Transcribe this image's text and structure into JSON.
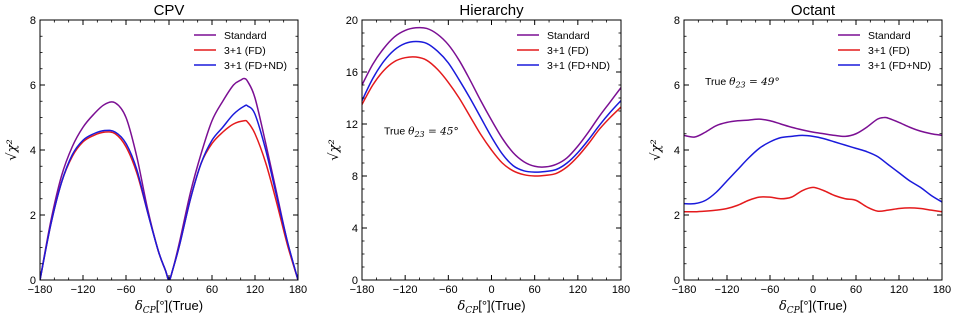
{
  "chart_data": [
    {
      "type": "line",
      "title": "CPV",
      "xlabel": "δCP[°](True)",
      "ylabel": "√χ²",
      "xlim": [
        -180,
        180
      ],
      "ylim": [
        0,
        8
      ],
      "xticks": [
        "−180",
        "−120",
        "−60",
        "0",
        "60",
        "120",
        "180"
      ],
      "yticks": [
        "0",
        "2",
        "4",
        "6",
        "8"
      ],
      "legend_position": "top-right",
      "annotation": "",
      "series": [
        {
          "name": "Standard",
          "color": "#7b0f93",
          "x": [
            -180,
            -165,
            -150,
            -135,
            -120,
            -105,
            -90,
            -75,
            -60,
            -45,
            -30,
            -15,
            -5,
            0,
            5,
            15,
            30,
            45,
            60,
            75,
            90,
            100,
            105,
            110,
            120,
            135,
            150,
            165,
            180
          ],
          "y": [
            0,
            1.8,
            3.2,
            4.1,
            4.7,
            5.1,
            5.4,
            5.45,
            5.0,
            3.8,
            2.2,
            0.9,
            0.3,
            0,
            0.3,
            1.2,
            2.7,
            3.9,
            4.9,
            5.5,
            6.0,
            6.15,
            6.2,
            6.1,
            5.6,
            4.2,
            2.7,
            1.2,
            0
          ]
        },
        {
          "name": "3+1 (FD)",
          "color": "#e41a1c",
          "x": [
            -180,
            -165,
            -150,
            -135,
            -120,
            -105,
            -90,
            -75,
            -60,
            -45,
            -30,
            -15,
            -5,
            0,
            5,
            15,
            30,
            45,
            60,
            75,
            90,
            105,
            110,
            120,
            135,
            150,
            165,
            180
          ],
          "y": [
            0,
            1.7,
            3.0,
            3.8,
            4.25,
            4.45,
            4.55,
            4.5,
            4.1,
            3.3,
            2.1,
            0.9,
            0.3,
            0,
            0.3,
            1.1,
            2.5,
            3.6,
            4.2,
            4.55,
            4.8,
            4.9,
            4.85,
            4.5,
            3.6,
            2.4,
            1.1,
            0
          ]
        },
        {
          "name": "3+1 (FD+ND)",
          "color": "#1a1adb",
          "x": [
            -180,
            -165,
            -150,
            -135,
            -120,
            -105,
            -90,
            -75,
            -60,
            -45,
            -30,
            -15,
            -5,
            0,
            5,
            15,
            30,
            45,
            60,
            75,
            90,
            105,
            110,
            120,
            135,
            150,
            165,
            180
          ],
          "y": [
            0,
            1.7,
            3.0,
            3.85,
            4.3,
            4.5,
            4.6,
            4.55,
            4.2,
            3.4,
            2.1,
            0.9,
            0.3,
            0,
            0.3,
            1.1,
            2.5,
            3.6,
            4.3,
            4.7,
            5.1,
            5.35,
            5.35,
            5.1,
            4.0,
            2.6,
            1.2,
            0
          ]
        }
      ]
    },
    {
      "type": "line",
      "title": "Hierarchy",
      "xlabel": "δCP[°](True)",
      "ylabel": "√χ²",
      "xlim": [
        -180,
        180
      ],
      "ylim": [
        0,
        20
      ],
      "xticks": [
        "−180",
        "−120",
        "−60",
        "0",
        "60",
        "120",
        "180"
      ],
      "yticks": [
        "0",
        "4",
        "8",
        "12",
        "16",
        "20"
      ],
      "legend_position": "top-right",
      "annotation": "True θ23 = 45°",
      "series": [
        {
          "name": "Standard",
          "color": "#7b0f93",
          "x": [
            -180,
            -165,
            -150,
            -135,
            -120,
            -105,
            -90,
            -75,
            -60,
            -45,
            -30,
            -15,
            0,
            15,
            30,
            45,
            60,
            75,
            90,
            105,
            120,
            135,
            150,
            165,
            180
          ],
          "y": [
            15.0,
            16.6,
            17.8,
            18.7,
            19.2,
            19.4,
            19.35,
            18.9,
            18.1,
            16.9,
            15.4,
            13.8,
            12.3,
            10.9,
            9.8,
            9.1,
            8.75,
            8.7,
            8.9,
            9.4,
            10.3,
            11.4,
            12.6,
            13.7,
            14.8
          ]
        },
        {
          "name": "3+1 (FD)",
          "color": "#e41a1c",
          "x": [
            -180,
            -165,
            -150,
            -135,
            -120,
            -105,
            -90,
            -75,
            -60,
            -45,
            -30,
            -15,
            0,
            15,
            30,
            45,
            60,
            75,
            90,
            105,
            120,
            135,
            150,
            165,
            180
          ],
          "y": [
            13.5,
            15.0,
            16.1,
            16.8,
            17.1,
            17.15,
            16.9,
            16.2,
            15.2,
            14.0,
            12.6,
            11.2,
            10.0,
            9.0,
            8.4,
            8.1,
            8.0,
            8.05,
            8.2,
            8.7,
            9.5,
            10.5,
            11.6,
            12.5,
            13.3
          ]
        },
        {
          "name": "3+1 (FD+ND)",
          "color": "#1a1adb",
          "x": [
            -180,
            -165,
            -150,
            -135,
            -120,
            -105,
            -90,
            -75,
            -60,
            -45,
            -30,
            -15,
            0,
            15,
            30,
            45,
            60,
            75,
            90,
            105,
            120,
            135,
            150,
            165,
            180
          ],
          "y": [
            13.8,
            15.5,
            16.8,
            17.7,
            18.2,
            18.35,
            18.2,
            17.6,
            16.7,
            15.4,
            14.0,
            12.5,
            11.0,
            9.7,
            8.8,
            8.4,
            8.3,
            8.35,
            8.5,
            9.0,
            9.8,
            10.8,
            11.9,
            12.9,
            13.8
          ]
        }
      ]
    },
    {
      "type": "line",
      "title": "Octant",
      "xlabel": "δCP[°](True)",
      "ylabel": "√χ²",
      "xlim": [
        -180,
        180
      ],
      "ylim": [
        0,
        8
      ],
      "xticks": [
        "−180",
        "−120",
        "−60",
        "0",
        "60",
        "120",
        "180"
      ],
      "yticks": [
        "0",
        "2",
        "4",
        "6",
        "8"
      ],
      "legend_position": "top-right",
      "annotation": "True θ23 = 49°",
      "series": [
        {
          "name": "Standard",
          "color": "#7b0f93",
          "x": [
            -180,
            -165,
            -150,
            -135,
            -120,
            -105,
            -90,
            -75,
            -60,
            -45,
            -30,
            -15,
            0,
            15,
            30,
            45,
            60,
            75,
            90,
            100,
            105,
            120,
            135,
            150,
            165,
            180
          ],
          "y": [
            4.45,
            4.4,
            4.55,
            4.75,
            4.85,
            4.9,
            4.92,
            4.95,
            4.9,
            4.8,
            4.7,
            4.62,
            4.55,
            4.5,
            4.45,
            4.42,
            4.5,
            4.7,
            4.95,
            5.0,
            4.98,
            4.85,
            4.7,
            4.58,
            4.5,
            4.45
          ]
        },
        {
          "name": "3+1 (FD)",
          "color": "#e41a1c",
          "x": [
            -180,
            -165,
            -150,
            -135,
            -120,
            -105,
            -90,
            -75,
            -60,
            -45,
            -30,
            -15,
            0,
            15,
            30,
            45,
            60,
            75,
            90,
            105,
            120,
            135,
            150,
            165,
            180
          ],
          "y": [
            2.1,
            2.1,
            2.12,
            2.15,
            2.2,
            2.3,
            2.45,
            2.55,
            2.55,
            2.5,
            2.55,
            2.75,
            2.85,
            2.75,
            2.6,
            2.5,
            2.45,
            2.25,
            2.12,
            2.15,
            2.2,
            2.22,
            2.2,
            2.15,
            2.1
          ]
        },
        {
          "name": "3+1 (FD+ND)",
          "color": "#1a1adb",
          "x": [
            -180,
            -165,
            -150,
            -135,
            -120,
            -105,
            -90,
            -75,
            -60,
            -45,
            -30,
            -15,
            0,
            15,
            30,
            45,
            60,
            75,
            90,
            105,
            120,
            135,
            150,
            165,
            180
          ],
          "y": [
            2.35,
            2.35,
            2.45,
            2.7,
            3.05,
            3.4,
            3.75,
            4.05,
            4.25,
            4.38,
            4.42,
            4.45,
            4.42,
            4.35,
            4.25,
            4.15,
            4.05,
            3.95,
            3.8,
            3.55,
            3.3,
            3.05,
            2.85,
            2.6,
            2.4
          ]
        }
      ]
    }
  ]
}
